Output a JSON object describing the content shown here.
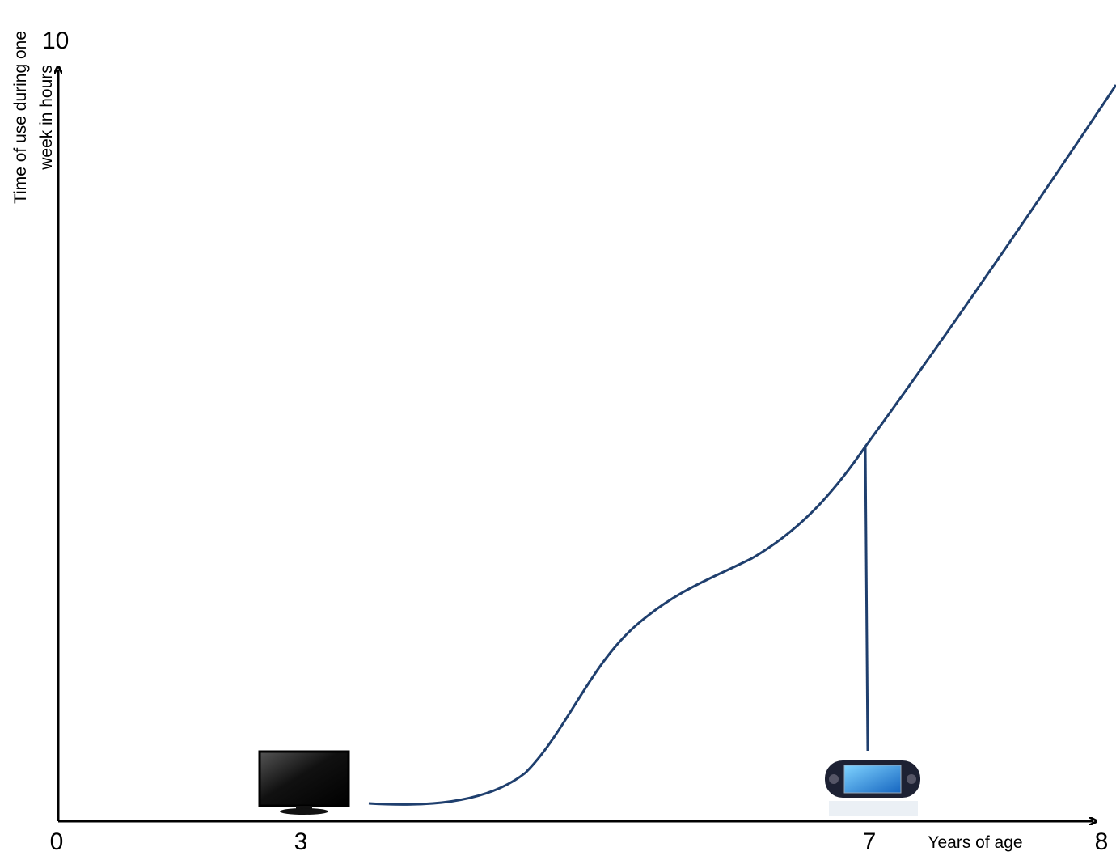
{
  "axes": {
    "y_top_label": "10",
    "y_title_lines": [
      "Time of use during one",
      "week in hours"
    ],
    "x_labels": [
      "0",
      "3",
      "7",
      "8"
    ],
    "x_title": "Years of age"
  }
}
